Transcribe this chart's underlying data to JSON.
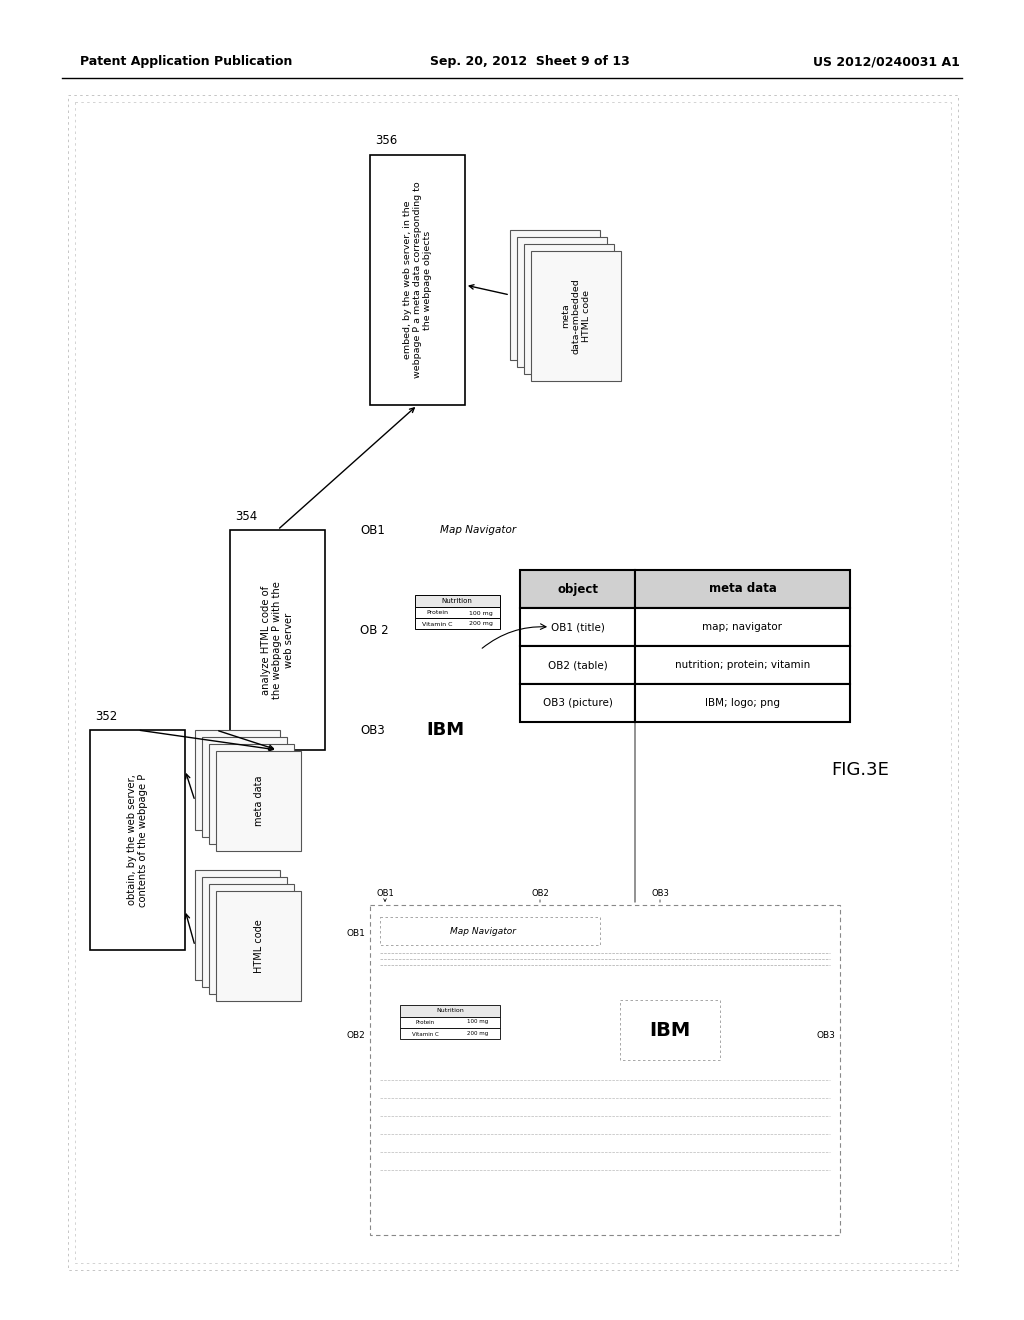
{
  "bg_color": "#ffffff",
  "header_left": "Patent Application Publication",
  "header_mid": "Sep. 20, 2012  Sheet 9 of 13",
  "header_right": "US 2012/0240031 A1",
  "fig_label": "FIG.3E",
  "step352_label": "352",
  "step354_label": "354",
  "step356_label": "356",
  "step352_text": "obtain, by the web server,\ncontents of the webpage P",
  "step354_text": "analyze HTML code of\nthe webpage P with the\nweb server",
  "step356_text": "embed, by the web server, in the\nwebpage P a meta data corresponding to\nthe webpage objects",
  "html_code_label": "HTML code",
  "meta_data_label": "meta data",
  "meta_embedded_label": "meta\ndata-embedded\nHTML code",
  "ob1_label": "OB1",
  "ob2_label": "OB 2",
  "ob3_label": "OB3",
  "map_navigator_label": "Map Navigator",
  "ibm_label": "IBM",
  "table_obj_label": "object",
  "table_meta_label": "meta data",
  "table_row1_obj": "OB1 (title)",
  "table_row2_obj": "OB2 (table)",
  "table_row3_obj": "OB3 (picture)",
  "table_row1_meta": "map; navigator",
  "table_row2_meta": "nutrition; protein; vitamin",
  "table_row3_meta": "IBM; logo; png",
  "nutrition_label": "Nutrition",
  "protein_label": "Protein",
  "vitamin_c_label": "Vitamin C",
  "protein_val": "100 mg",
  "vitamin_val": "200 mg"
}
